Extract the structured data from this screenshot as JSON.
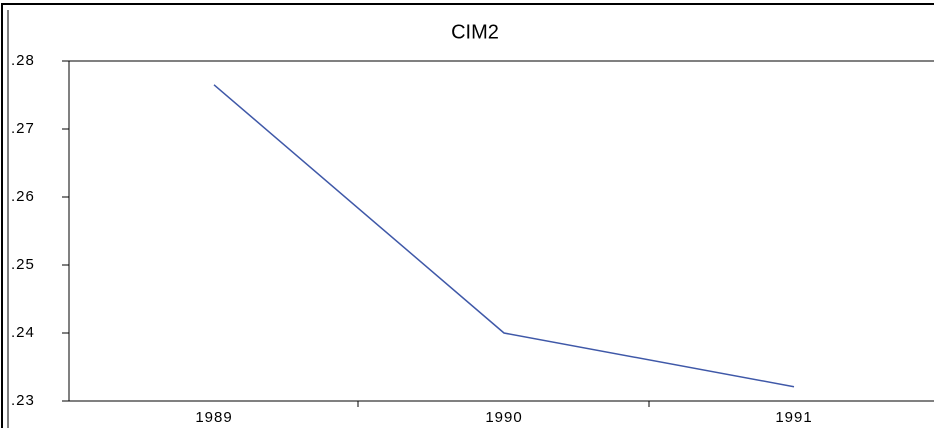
{
  "chart_data": {
    "type": "line",
    "title": "CIM2",
    "categories": [
      "1989",
      "1990",
      "1991"
    ],
    "values": [
      0.2765,
      0.24,
      0.2321
    ],
    "color": "#3f58a8",
    "ylim": [
      0.23,
      0.28
    ],
    "yticks": [
      {
        "value": 0.23,
        "label": ".23"
      },
      {
        "value": 0.24,
        "label": ".24"
      },
      {
        "value": 0.25,
        "label": ".25"
      },
      {
        "value": 0.26,
        "label": ".26"
      },
      {
        "value": 0.27,
        "label": ".27"
      },
      {
        "value": 0.28,
        "label": ".28"
      }
    ],
    "grid": false
  }
}
